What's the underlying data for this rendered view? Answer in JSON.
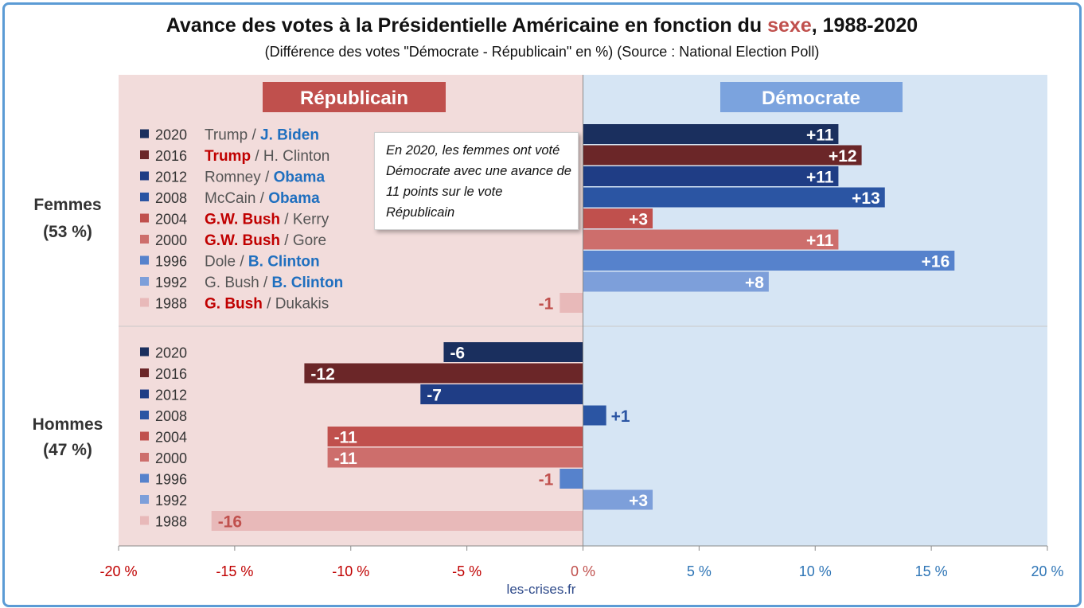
{
  "title": {
    "before": "Avance des votes à la Présidentielle Américaine en fonction du ",
    "highlight": "sexe",
    "after": ", 1988-2020"
  },
  "subtitle": "(Différence des votes \"Démocrate - Républicain\" en %) (Source : National Election Poll)",
  "headers": {
    "rep": "Républicain",
    "dem": "Démocrate"
  },
  "groups": [
    {
      "label": "Femmes",
      "share": "(53 %)"
    },
    {
      "label": "Hommes",
      "share": "(47 %)"
    }
  ],
  "annotation": "En 2020, les femmes ont voté Démocrate avec une avance de 11 points sur le vote Républicain",
  "source_site": "les-crises.fr",
  "colors": {
    "rep_bg": "#f2dcdb",
    "dem_bg": "#d6e5f4",
    "rep_header": "#c0504d",
    "dem_header": "#7ba3de",
    "rep_text": "#c00000",
    "dem_text": "#1f6fbf",
    "neg_axis": "#c00000",
    "pos_axis": "#2e75b6",
    "year_colors": {
      "2020": "#1a2f5e",
      "2016": "#6b2628",
      "2012": "#1f3d85",
      "2008": "#2b55a3",
      "2004": "#c0504d",
      "2000": "#cd6e6c",
      "1996": "#5682cc",
      "1992": "#7d9fda",
      "1988": "#e8b9b9"
    }
  },
  "chart_data": {
    "type": "bar",
    "orientation": "horizontal",
    "xlim": [
      -20,
      20
    ],
    "xticks": [
      "-20 %",
      "-15 %",
      "-10 %",
      "-5 %",
      "0 %",
      "5 %",
      "10 %",
      "15 %",
      "20 %"
    ],
    "xtick_values": [
      -20,
      -15,
      -10,
      -5,
      0,
      5,
      10,
      15,
      20
    ],
    "series": [
      {
        "name": "Femmes",
        "rows": [
          {
            "year": "2020",
            "rep": "Trump",
            "sep": " / ",
            "dem": "J. Biden",
            "winner": "dem",
            "value": 11,
            "label": "+11"
          },
          {
            "year": "2016",
            "rep": "Trump",
            "sep": " / ",
            "dem": "H. Clinton",
            "winner": "rep",
            "value": 12,
            "label": "+12"
          },
          {
            "year": "2012",
            "rep": "Romney",
            "sep": " / ",
            "dem": "Obama",
            "winner": "dem",
            "value": 11,
            "label": "+11"
          },
          {
            "year": "2008",
            "rep": "McCain",
            "sep": " / ",
            "dem": "Obama",
            "winner": "dem",
            "value": 13,
            "label": "+13"
          },
          {
            "year": "2004",
            "rep": "G.W. Bush",
            "sep": " / ",
            "dem": "Kerry",
            "winner": "rep",
            "value": 3,
            "label": "+3"
          },
          {
            "year": "2000",
            "rep": "G.W. Bush",
            "sep": " / ",
            "dem": "Gore",
            "winner": "rep",
            "value": 11,
            "label": "+11"
          },
          {
            "year": "1996",
            "rep": "Dole",
            "sep": " / ",
            "dem": "B. Clinton",
            "winner": "dem",
            "value": 16,
            "label": "+16"
          },
          {
            "year": "1992",
            "rep": "G. Bush",
            "sep": " / ",
            "dem": "B. Clinton",
            "winner": "dem",
            "value": 8,
            "label": "+8"
          },
          {
            "year": "1988",
            "rep": "G. Bush",
            "sep": " / ",
            "dem": "Dukakis",
            "winner": "rep",
            "value": -1,
            "label": "-1"
          }
        ]
      },
      {
        "name": "Hommes",
        "rows": [
          {
            "year": "2020",
            "value": -6,
            "label": "-6"
          },
          {
            "year": "2016",
            "value": -12,
            "label": "-12"
          },
          {
            "year": "2012",
            "value": -7,
            "label": "-7"
          },
          {
            "year": "2008",
            "value": 1,
            "label": "+1"
          },
          {
            "year": "2004",
            "value": -11,
            "label": "-11"
          },
          {
            "year": "2000",
            "value": -11,
            "label": "-11"
          },
          {
            "year": "1996",
            "value": -1,
            "label": "-1"
          },
          {
            "year": "1992",
            "value": 3,
            "label": "+3"
          },
          {
            "year": "1988",
            "value": -16,
            "label": "-16"
          }
        ]
      }
    ]
  }
}
